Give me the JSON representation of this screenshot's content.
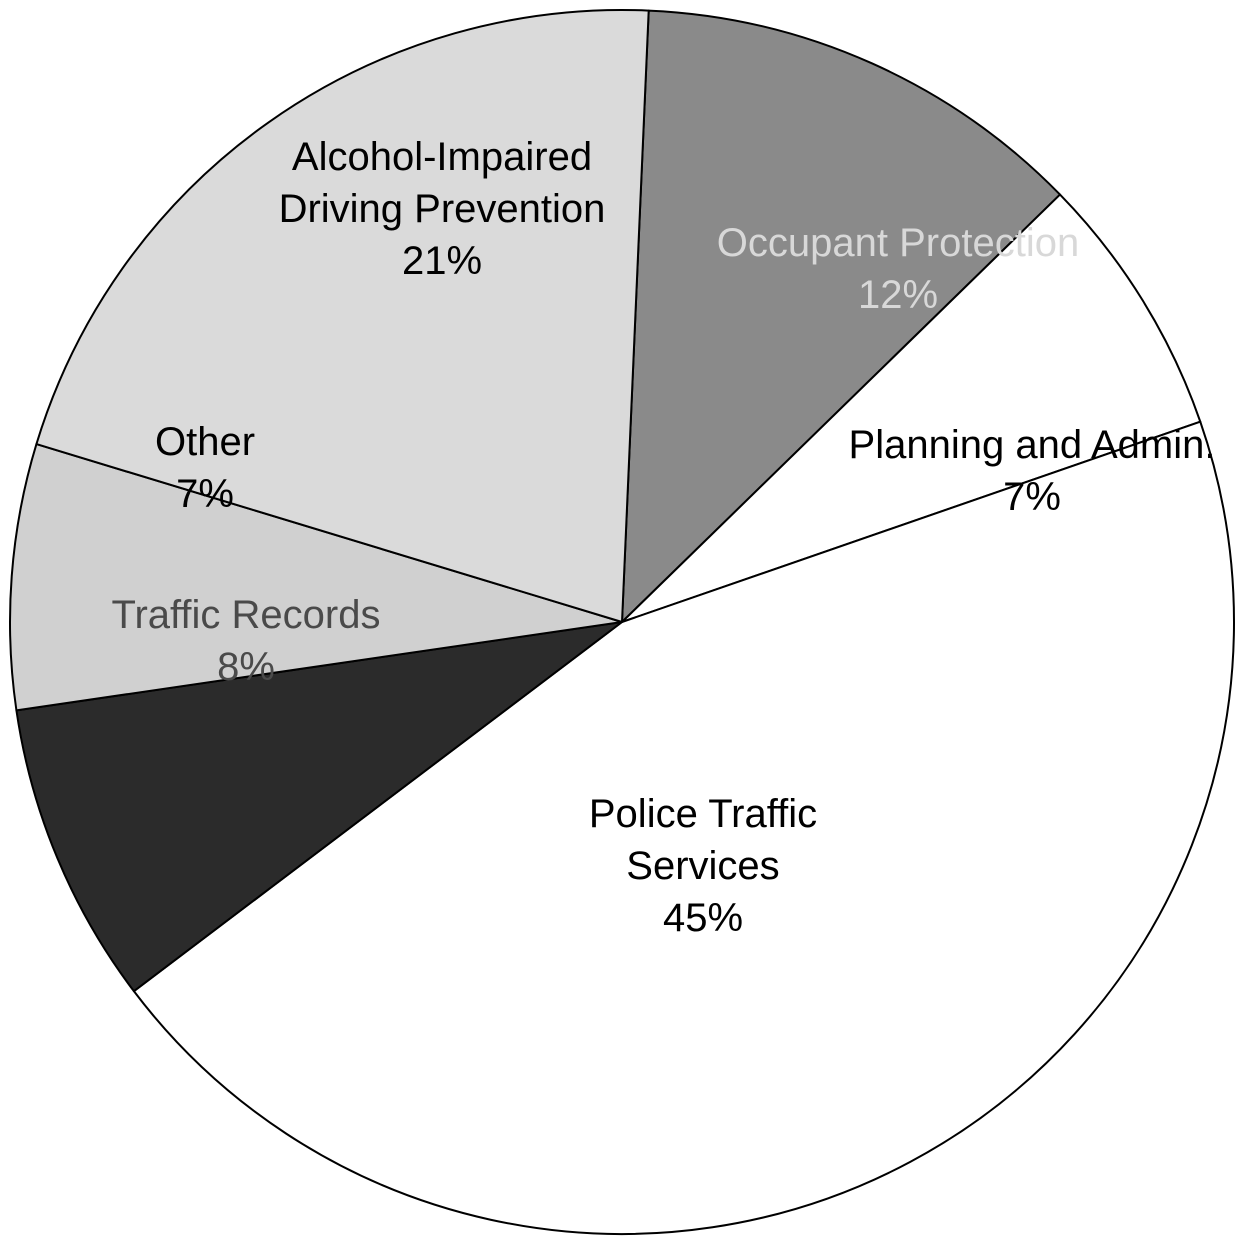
{
  "chart_data": {
    "type": "pie",
    "title": "",
    "start_angle_deg": 272.5,
    "slices": [
      {
        "name": "Occupant Protection",
        "label_lines": [
          "Occupant Protection"
        ],
        "value": 12,
        "value_label": "12%",
        "fill": "#8a8a8a",
        "text_color": "#d8d8d8"
      },
      {
        "name": "Planning and Admin.",
        "label_lines": [
          "Planning and Admin."
        ],
        "value": 7,
        "value_label": "7%",
        "fill": "#ffffff",
        "text_color": "#000000"
      },
      {
        "name": "Police Traffic Services",
        "label_lines": [
          "Police Traffic",
          "Services"
        ],
        "value": 45,
        "value_label": "45%",
        "fill": "#ffffff",
        "text_color": "#000000"
      },
      {
        "name": "Traffic Records",
        "label_lines": [
          "Traffic Records"
        ],
        "value": 8,
        "value_label": "8%",
        "fill": "#2b2b2b",
        "text_color": "#4a4a4a"
      },
      {
        "name": "Other",
        "label_lines": [
          "Other"
        ],
        "value": 7,
        "value_label": "7%",
        "fill": "#d0d0d0",
        "text_color": "#000000"
      },
      {
        "name": "Alcohol-Impaired Driving Prevention",
        "label_lines": [
          "Alcohol-Impaired",
          "Driving Prevention"
        ],
        "value": 21,
        "value_label": "21%",
        "fill": "#dadada",
        "text_color": "#000000"
      }
    ]
  }
}
